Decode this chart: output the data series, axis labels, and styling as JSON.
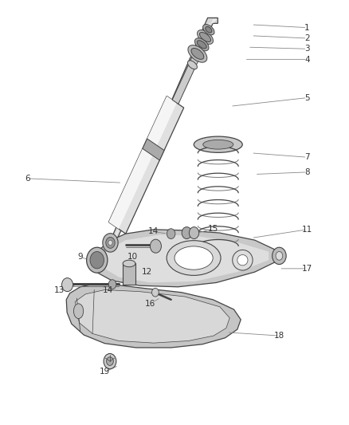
{
  "bg_color": "#ffffff",
  "line_color": "#444444",
  "text_color": "#333333",
  "leader_color": "#888888",
  "parts_labels": [
    [
      1,
      0.88,
      0.935,
      0.72,
      0.942
    ],
    [
      2,
      0.88,
      0.91,
      0.72,
      0.916
    ],
    [
      3,
      0.88,
      0.885,
      0.71,
      0.889
    ],
    [
      4,
      0.88,
      0.86,
      0.7,
      0.86
    ],
    [
      5,
      0.88,
      0.77,
      0.66,
      0.75
    ],
    [
      6,
      0.08,
      0.58,
      0.35,
      0.57
    ],
    [
      7,
      0.88,
      0.63,
      0.72,
      0.64
    ],
    [
      8,
      0.88,
      0.595,
      0.73,
      0.59
    ],
    [
      9,
      0.23,
      0.395,
      0.3,
      0.378
    ],
    [
      10,
      0.38,
      0.395,
      0.42,
      0.375
    ],
    [
      11,
      0.88,
      0.46,
      0.72,
      0.44
    ],
    [
      12,
      0.42,
      0.36,
      0.42,
      0.348
    ],
    [
      13,
      0.17,
      0.318,
      0.22,
      0.33
    ],
    [
      14,
      0.31,
      0.318,
      0.32,
      0.335
    ],
    [
      14,
      0.44,
      0.455,
      0.48,
      0.45
    ],
    [
      15,
      0.61,
      0.462,
      0.55,
      0.448
    ],
    [
      16,
      0.43,
      0.285,
      0.46,
      0.3
    ],
    [
      17,
      0.88,
      0.368,
      0.8,
      0.368
    ],
    [
      18,
      0.8,
      0.21,
      0.65,
      0.218
    ],
    [
      19,
      0.3,
      0.125,
      0.34,
      0.14
    ]
  ]
}
